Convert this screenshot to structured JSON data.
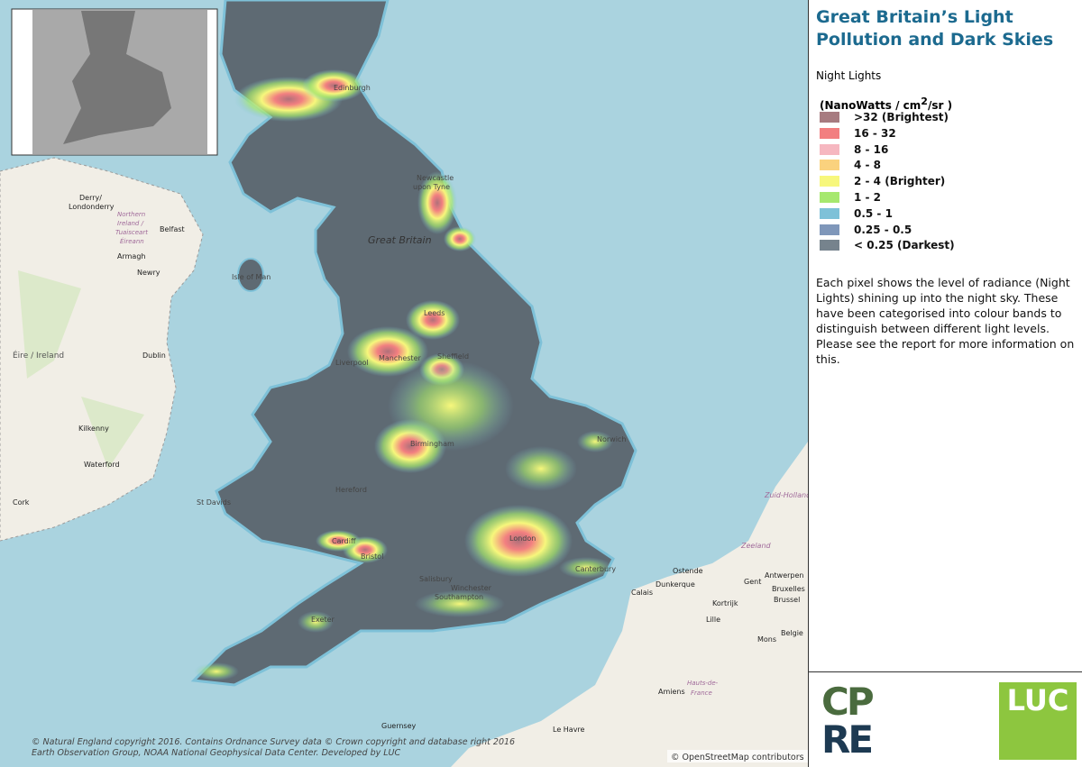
{
  "header": {
    "title_line1": "Great Britain’s Light",
    "title_line2": "Pollution and Dark Skies"
  },
  "legend": {
    "heading": "Night Lights",
    "units": {
      "prefix": "(NanoWatts / cm",
      "sup": "2",
      "suffix": "/sr )"
    },
    "items": [
      {
        "label": ">32 (Brightest)",
        "color": "#a77b80"
      },
      {
        "label": "16 - 32",
        "color": "#f27f80"
      },
      {
        "label": "8 - 16",
        "color": "#f6b7c0"
      },
      {
        "label": "4 - 8",
        "color": "#fad27e"
      },
      {
        "label": "2 - 4 (Brighter)",
        "color": "#f7f77c"
      },
      {
        "label": "1 - 2",
        "color": "#a6e86e"
      },
      {
        "label": "0.5 - 1",
        "color": "#7ec1d8"
      },
      {
        "label": "0.25 - 0.5",
        "color": "#7f97ba"
      },
      {
        "label": "< 0.25 (Darkest)",
        "color": "#76838d"
      }
    ]
  },
  "description": [
    "Each pixel shows the level of radiance (Night",
    "Lights) shining up into the night sky. These",
    "have been categorised into colour bands to",
    "distinguish between different light levels.",
    "Please see the report for more information on",
    "this."
  ],
  "logos": {
    "cpre_top": "CP",
    "cpre_bottom": "RE",
    "luc": "LUC"
  },
  "map": {
    "places": [
      "Edinburgh",
      "Newcastle",
      "upon Tyne",
      "Great Britain",
      "Leeds",
      "Manchester",
      "Sheffield",
      "Liverpool",
      "Birmingham",
      "London",
      "Bristol",
      "Cardiff",
      "Southampton",
      "Isle of Man",
      "Belfast",
      "Dublin",
      "Éire / Ireland",
      "Derry/",
      "Londonderry",
      "Northern",
      "Ireland /",
      "Tuaisceart",
      "Éireann",
      "Armagh",
      "Newry",
      "Kilkenny",
      "Waterford",
      "Cork",
      "Calais",
      "Dunkerque",
      "Gent",
      "Antwerpen",
      "Bruxelles",
      "Brussel",
      "Lille",
      "Amiens",
      "Hauts-de-",
      "France",
      "Le Havre",
      "Guernsey",
      "Zeeland",
      "Zuid-Holland",
      "Ostende",
      "Kortrijk",
      "Mons",
      "Belgie",
      "Hereford",
      "Salisbury",
      "Winchester",
      "Canterbury",
      "Norwich",
      "Exeter",
      "St Davids"
    ],
    "attribution": [
      "© Natural England copyright 2016. Contains Ordnance Survey data © Crown copyright and database right 2016",
      "Earth Observation Group, NOAA National Geophysical Data Center. Developed by LUC"
    ],
    "osm": "© OpenStreetMap contributors"
  }
}
